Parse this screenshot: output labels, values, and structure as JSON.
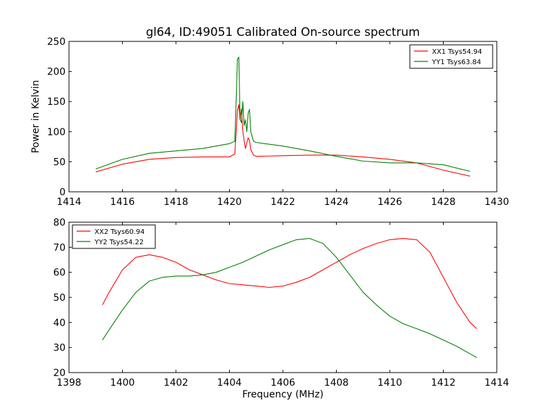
{
  "chart_data": [
    {
      "type": "line",
      "title": "gl64, ID:49051 Calibrated On-source spectrum",
      "xlabel": "",
      "ylabel": "Power in Kelvin",
      "xlim": [
        1414,
        1430
      ],
      "ylim": [
        0,
        250
      ],
      "xticks": [
        1414,
        1416,
        1418,
        1420,
        1422,
        1424,
        1426,
        1428,
        1430
      ],
      "yticks": [
        0,
        50,
        100,
        150,
        200,
        250
      ],
      "grid": false,
      "legend_position": "top-right",
      "series": [
        {
          "name": "XX1 Tsys54.94",
          "color": "#ff0000",
          "x": [
            1415.0,
            1416.0,
            1417.0,
            1418.0,
            1419.0,
            1420.0,
            1420.2,
            1420.3,
            1420.35,
            1420.4,
            1420.45,
            1420.5,
            1420.55,
            1420.6,
            1420.7,
            1420.75,
            1420.8,
            1420.9,
            1421.0,
            1422.0,
            1423.0,
            1424.0,
            1425.0,
            1426.0,
            1427.0,
            1428.0,
            1429.0
          ],
          "values": [
            33,
            46,
            54,
            57,
            58,
            58,
            63,
            135,
            145,
            120,
            138,
            100,
            85,
            72,
            90,
            85,
            70,
            61,
            59,
            60,
            61,
            61,
            58,
            54,
            48,
            36,
            26
          ]
        },
        {
          "name": "YY1 Tsys63.84",
          "color": "#008000",
          "x": [
            1415.0,
            1416.0,
            1417.0,
            1418.0,
            1419.0,
            1419.5,
            1420.0,
            1420.2,
            1420.25,
            1420.3,
            1420.35,
            1420.4,
            1420.45,
            1420.5,
            1420.55,
            1420.6,
            1420.65,
            1420.7,
            1420.75,
            1420.8,
            1420.9,
            1421.0,
            1422.0,
            1423.0,
            1424.0,
            1425.0,
            1426.0,
            1427.0,
            1428.0,
            1429.0
          ],
          "values": [
            38,
            54,
            64,
            68,
            72,
            76,
            80,
            84,
            150,
            220,
            224,
            120,
            115,
            150,
            110,
            120,
            100,
            130,
            137,
            100,
            84,
            82,
            76,
            68,
            59,
            51,
            48,
            48,
            45,
            34
          ]
        }
      ]
    },
    {
      "type": "line",
      "title": "",
      "xlabel": "Frequency (MHz)",
      "ylabel": "",
      "xlim": [
        1398,
        1414
      ],
      "ylim": [
        20,
        80
      ],
      "xticks": [
        1398,
        1400,
        1402,
        1404,
        1406,
        1408,
        1410,
        1412,
        1414
      ],
      "yticks": [
        20,
        30,
        40,
        50,
        60,
        70,
        80
      ],
      "grid": false,
      "legend_position": "top-left",
      "series": [
        {
          "name": "XX2 Tsys60.94",
          "color": "#ff0000",
          "x": [
            1399.25,
            1399.5,
            1400.0,
            1400.5,
            1401.0,
            1401.5,
            1402.0,
            1402.5,
            1403.0,
            1403.5,
            1404.0,
            1404.5,
            1405.0,
            1405.5,
            1406.0,
            1406.5,
            1407.0,
            1407.5,
            1408.0,
            1408.5,
            1409.0,
            1409.5,
            1410.0,
            1410.5,
            1411.0,
            1411.5,
            1412.0,
            1412.5,
            1413.0,
            1413.25
          ],
          "values": [
            47,
            52,
            61,
            66,
            67,
            66,
            64,
            61,
            59,
            57,
            55.5,
            55,
            54.5,
            54,
            54.5,
            56,
            58,
            61,
            64,
            67,
            69.5,
            71.5,
            73,
            73.5,
            73,
            68,
            58,
            48,
            40,
            37.5
          ]
        },
        {
          "name": "YY2 Tsys54.22",
          "color": "#008000",
          "x": [
            1399.25,
            1399.5,
            1400.0,
            1400.5,
            1401.0,
            1401.5,
            1402.0,
            1402.5,
            1403.0,
            1403.5,
            1404.0,
            1404.5,
            1405.0,
            1405.5,
            1406.0,
            1406.5,
            1407.0,
            1407.5,
            1408.0,
            1408.5,
            1409.0,
            1409.5,
            1410.0,
            1410.5,
            1411.0,
            1411.5,
            1412.0,
            1412.5,
            1413.0,
            1413.25
          ],
          "values": [
            33,
            37,
            45,
            52,
            56.5,
            58,
            58.5,
            58.5,
            59,
            60,
            62,
            64,
            66.5,
            69,
            71,
            73,
            73.5,
            71.5,
            66,
            59,
            52,
            47,
            42.5,
            39.5,
            37.5,
            35.5,
            33,
            30.5,
            27.5,
            26
          ]
        }
      ]
    }
  ]
}
